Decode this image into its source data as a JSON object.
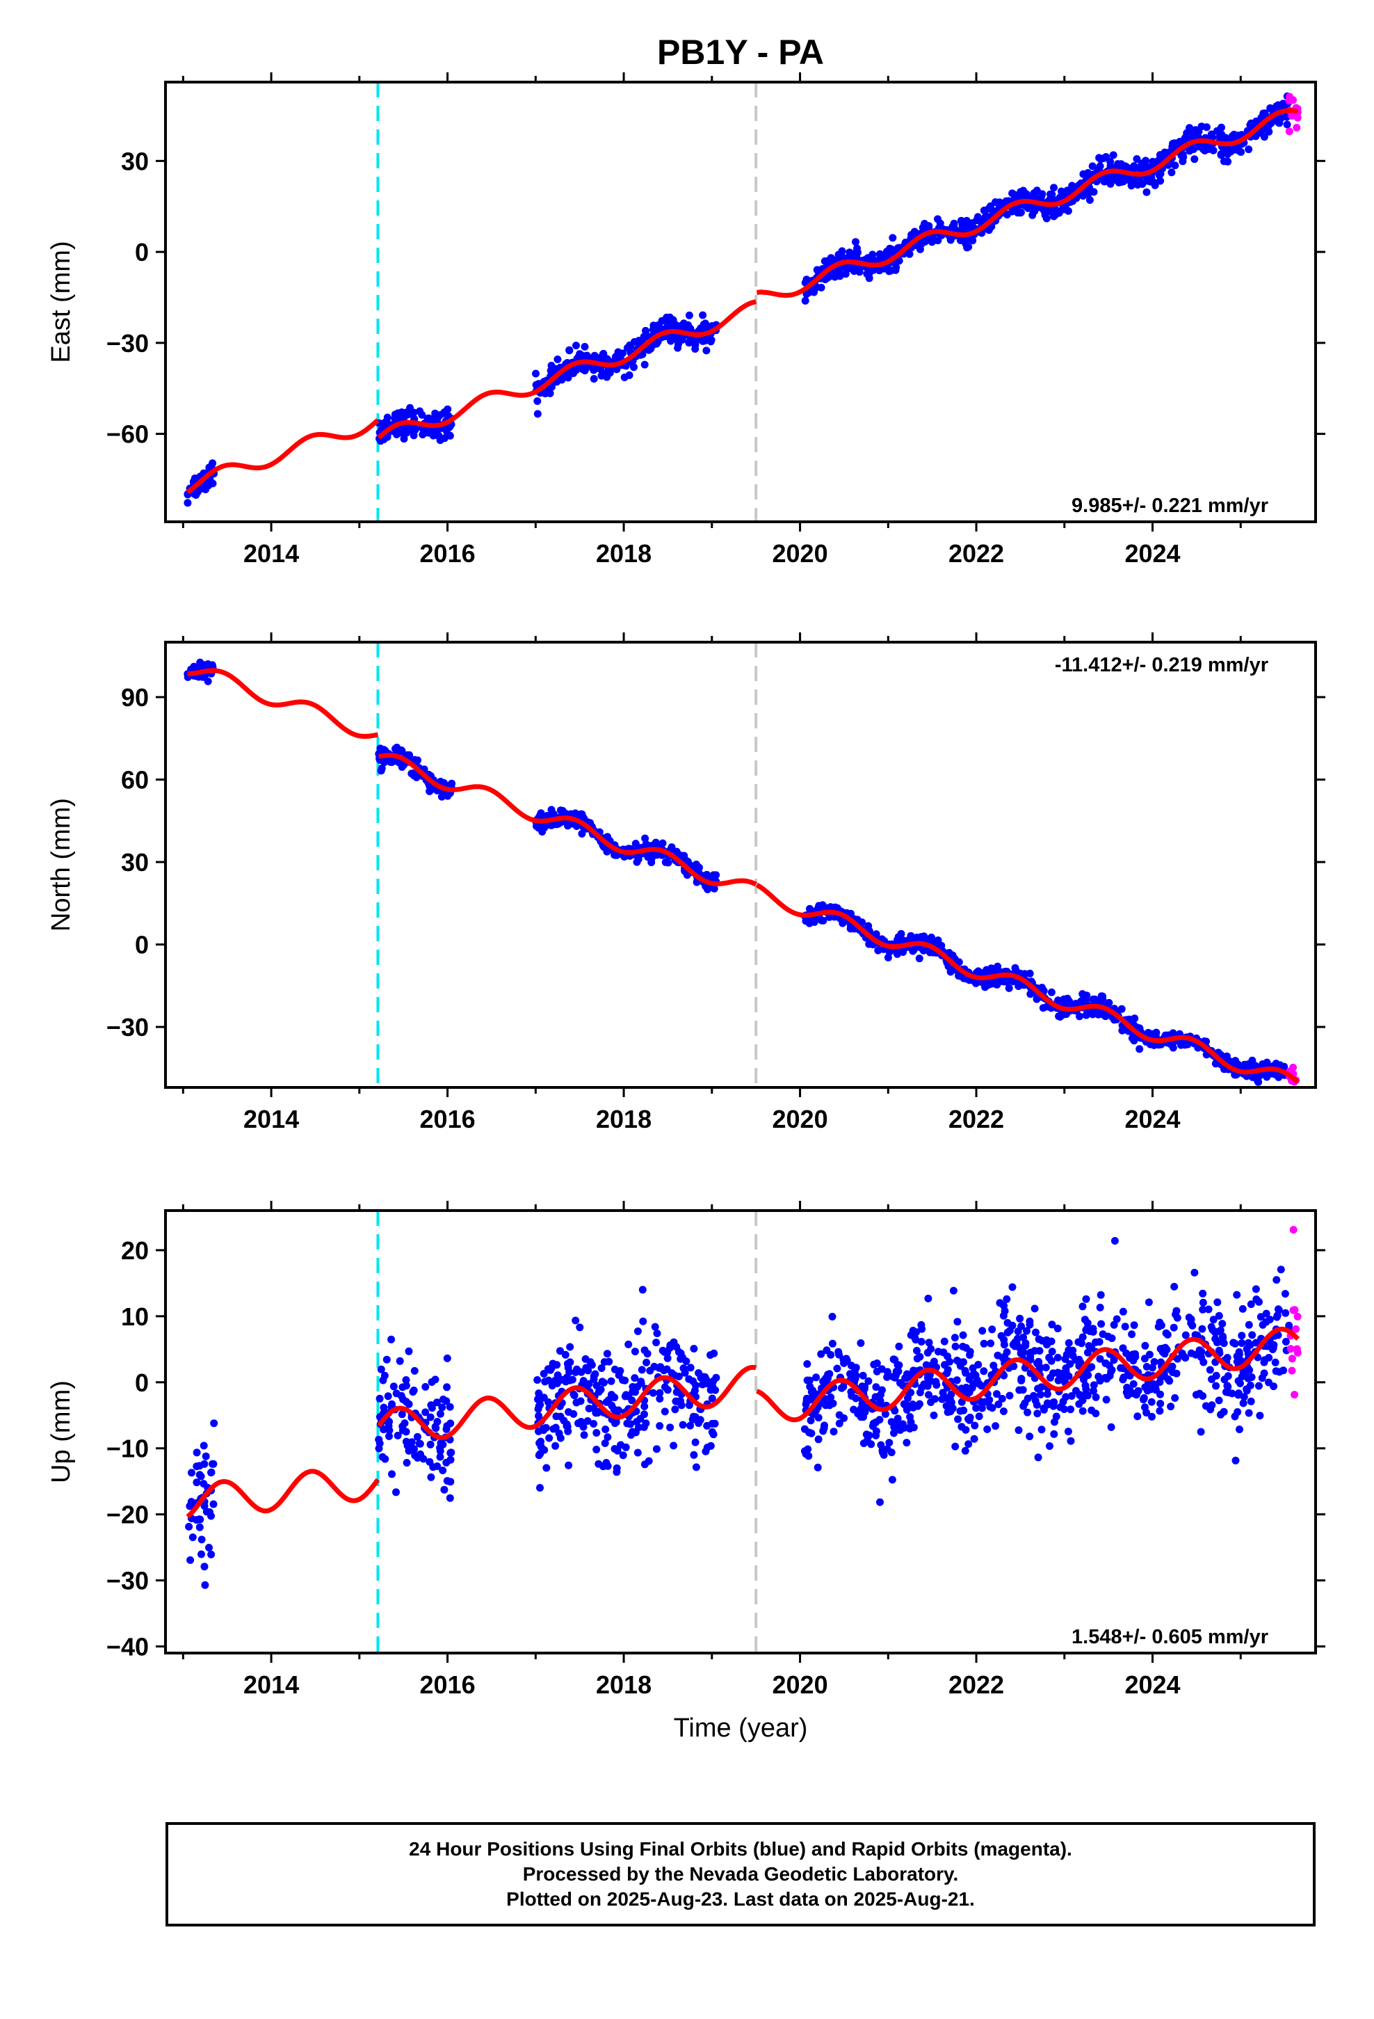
{
  "title": "PB1Y - PA",
  "footer": {
    "line1": "24 Hour Positions Using Final Orbits (blue) and Rapid Orbits (magenta).",
    "line2": "Processed by the Nevada Geodetic Laboratory.",
    "line3": "Plotted on 2025-Aug-23. Last data on 2025-Aug-21."
  },
  "colors": {
    "final_orbits": "#0000ff",
    "rapid_orbits": "#ff00ff",
    "model": "#ff0000",
    "equipment_change": "#00e5ee",
    "earthquake_or_other": "#c8c8c8"
  },
  "chart_data": [
    {
      "type": "scatter",
      "ylabel": "East (mm)",
      "xlim": [
        2012.8,
        2025.85
      ],
      "ylim": [
        -89,
        56
      ],
      "xticks": [
        2014,
        2016,
        2018,
        2020,
        2022,
        2024
      ],
      "yticks": [
        -60,
        -30,
        0,
        30
      ],
      "rate_label": "9.985+/- 0.221 mm/yr",
      "rate_position": "bottom-right",
      "vertical_lines": [
        {
          "x": 2015.21,
          "color": "cyan",
          "style": "dashed"
        },
        {
          "x": 2019.5,
          "color": "gray",
          "style": "dashed"
        }
      ],
      "trend": {
        "rate": 9.985,
        "intercept": -10.8,
        "t0": 2020.0,
        "annual_amp": 2.5,
        "steps": [
          {
            "x": 2015.21,
            "dy": -6
          },
          {
            "x": 2019.5,
            "dy": 3
          }
        ]
      },
      "series": [
        {
          "kind": "final",
          "segments": [
            [
              2013.05,
              2013.35
            ],
            [
              2015.22,
              2016.05
            ],
            [
              2017.0,
              2019.05
            ],
            [
              2020.05,
              2025.55
            ]
          ],
          "scatter": 2.2
        },
        {
          "kind": "rapid",
          "segments": [
            [
              2025.55,
              2025.65
            ]
          ],
          "scatter": 3
        }
      ]
    },
    {
      "type": "scatter",
      "ylabel": "North (mm)",
      "xlim": [
        2012.8,
        2025.85
      ],
      "ylim": [
        -52,
        110
      ],
      "xticks": [
        2014,
        2016,
        2018,
        2020,
        2022,
        2024
      ],
      "yticks": [
        -30,
        0,
        30,
        60,
        90
      ],
      "rate_label": "-11.412+/- 0.219 mm/yr",
      "rate_position": "top-right",
      "vertical_lines": [
        {
          "x": 2015.21,
          "color": "cyan",
          "style": "dashed"
        },
        {
          "x": 2019.5,
          "color": "gray",
          "style": "dashed"
        }
      ],
      "trend": {
        "rate": -11.412,
        "intercept": 13.5,
        "t0": 2020.0,
        "annual_amp": 2.8,
        "steps": [
          {
            "x": 2015.21,
            "dy": -8
          },
          {
            "x": 2019.5,
            "dy": 0
          }
        ]
      },
      "series": [
        {
          "kind": "final",
          "segments": [
            [
              2013.05,
              2013.35
            ],
            [
              2015.22,
              2016.05
            ],
            [
              2017.0,
              2019.05
            ],
            [
              2020.05,
              2025.55
            ]
          ],
          "scatter": 1.6
        },
        {
          "kind": "rapid",
          "segments": [
            [
              2025.55,
              2025.65
            ]
          ],
          "scatter": 2
        }
      ]
    },
    {
      "type": "scatter",
      "ylabel": "Up (mm)",
      "xlabel": "Time (year)",
      "xlim": [
        2012.8,
        2025.85
      ],
      "ylim": [
        -41,
        26
      ],
      "xticks": [
        2014,
        2016,
        2018,
        2020,
        2022,
        2024
      ],
      "yticks": [
        -40,
        -30,
        -20,
        -10,
        0,
        10,
        20
      ],
      "rate_label": "1.548+/- 0.605 mm/yr",
      "rate_position": "bottom-right",
      "vertical_lines": [
        {
          "x": 2015.21,
          "color": "cyan",
          "style": "dashed"
        },
        {
          "x": 2019.5,
          "color": "gray",
          "style": "dashed"
        }
      ],
      "trend": {
        "rate": 1.548,
        "intercept": -3.0,
        "t0": 2020.0,
        "annual_amp": 2.6,
        "steps": [
          {
            "x": 2015.21,
            "dy": 8
          },
          {
            "x": 2019.5,
            "dy": -3.5
          }
        ]
      },
      "series": [
        {
          "kind": "final",
          "segments": [
            [
              2013.05,
              2013.35
            ],
            [
              2015.22,
              2016.05
            ],
            [
              2017.0,
              2019.05
            ],
            [
              2020.05,
              2025.55
            ]
          ],
          "scatter": 4.5
        },
        {
          "kind": "rapid",
          "segments": [
            [
              2025.55,
              2025.65
            ]
          ],
          "scatter": 7
        }
      ]
    }
  ]
}
